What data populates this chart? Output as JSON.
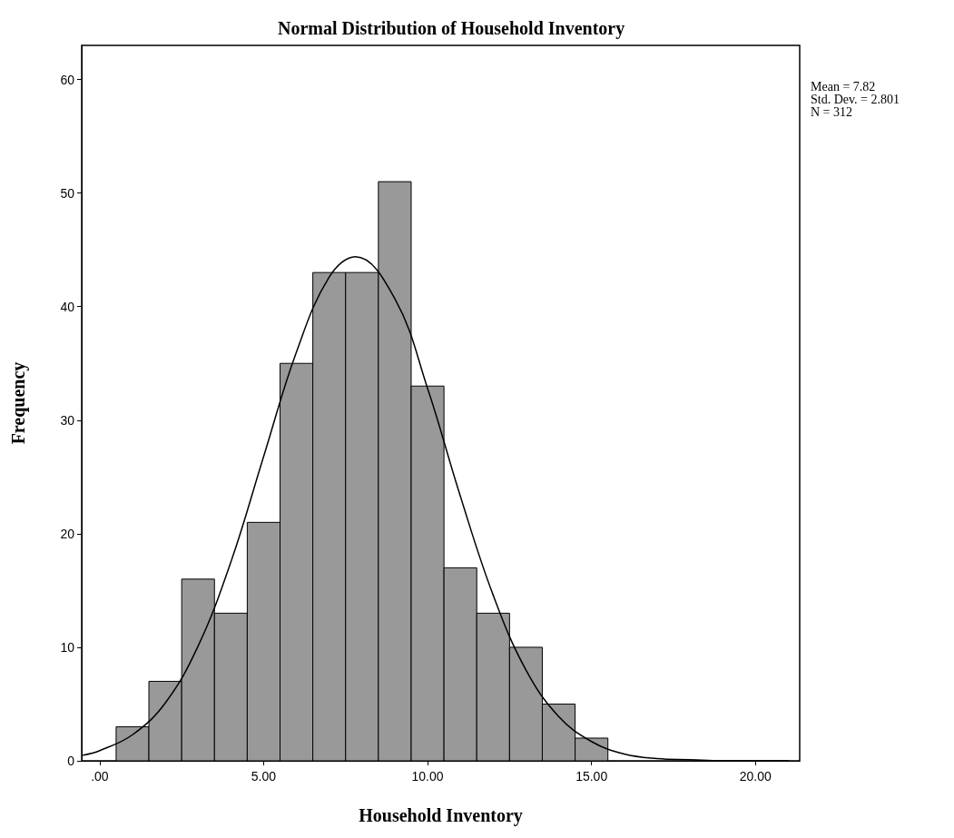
{
  "chart_data": {
    "type": "histogram",
    "title": "Normal Distribution of Household Inventory",
    "xlabel": "Household Inventory",
    "ylabel": "Frequency",
    "annotations": [
      "Mean = 7.82",
      "Std. Dev. = 2.801",
      "N = 312"
    ],
    "bins": [
      0.5,
      1.5,
      2.5,
      3.5,
      4.5,
      5.5,
      6.5,
      7.5,
      8.5,
      9.5,
      10.5,
      11.5,
      12.5,
      13.5,
      14.5,
      15.5
    ],
    "series": [
      {
        "color": "#999999",
        "values": [
          3,
          7,
          16,
          13,
          21,
          35,
          43,
          43,
          51,
          33,
          17,
          13,
          10,
          5,
          2
        ]
      },
      {
        "type": "line",
        "color": "#000000",
        "x": [
          -0.5,
          0,
          1,
          2,
          3,
          4,
          5,
          6,
          7,
          7.8,
          9,
          10,
          11,
          12,
          13,
          14,
          15,
          16,
          17,
          18,
          19,
          20,
          21
        ],
        "values": [
          0.5,
          0.9,
          2.3,
          5.1,
          10.1,
          17.5,
          26.8,
          36,
          42.6,
          44.4,
          40.7,
          32.8,
          23.3,
          14.6,
          8,
          3.9,
          1.7,
          0.6,
          0.2,
          0.1,
          0,
          0,
          0
        ]
      }
    ],
    "xlim": [
      -0.55,
      21.35
    ],
    "ylim": [
      0,
      63
    ],
    "xticks": [
      {
        "value": 0,
        "label": ".00"
      },
      {
        "value": 5,
        "label": "5.00"
      },
      {
        "value": 10,
        "label": "10.00"
      },
      {
        "value": 15,
        "label": "15.00"
      },
      {
        "value": 20,
        "label": "20.00"
      }
    ],
    "yticks": [
      0,
      10,
      20,
      30,
      40,
      50,
      60
    ],
    "grid": false,
    "marker": "none",
    "line_style": "solid"
  }
}
